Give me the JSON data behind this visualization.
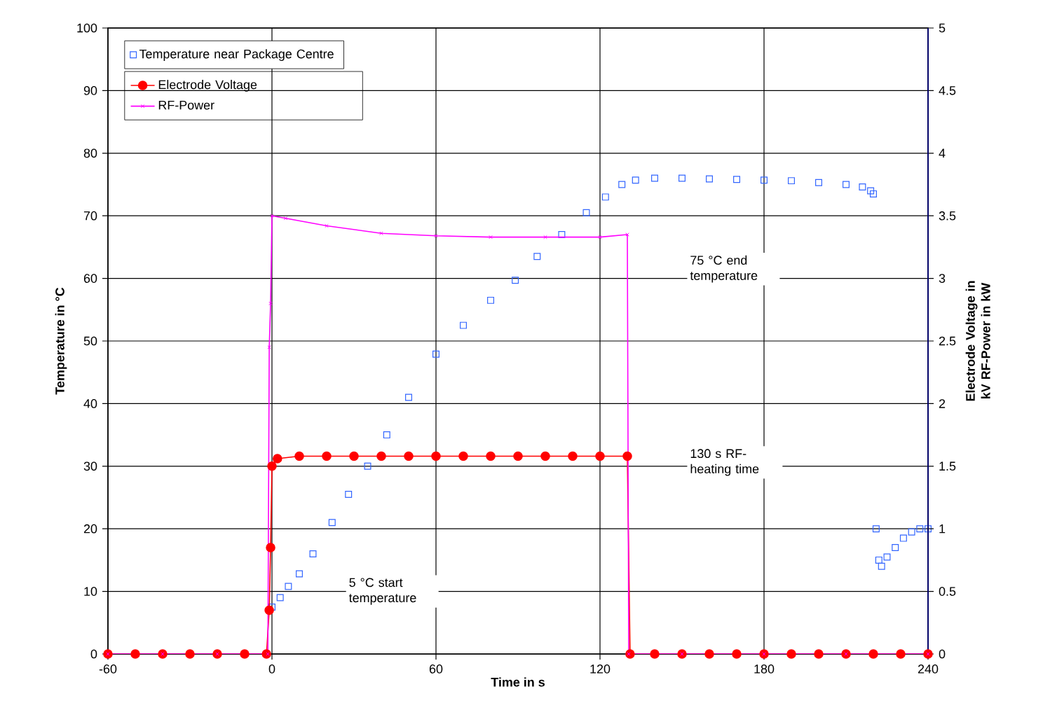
{
  "chart_data": {
    "type": "line",
    "xlabel": "Time in s",
    "ylabel": "Temperature in °C",
    "y2label": "Electrode Voltage in kV RF-Power in kW",
    "xlim": [
      -60,
      240
    ],
    "xticks": [
      -60,
      0,
      60,
      120,
      180,
      240
    ],
    "ylim": [
      0,
      100
    ],
    "yticks": [
      0,
      10,
      20,
      30,
      40,
      50,
      60,
      70,
      80,
      90,
      100
    ],
    "y2lim": [
      0,
      5
    ],
    "y2ticks": [
      0,
      0.5,
      1,
      1.5,
      2,
      2.5,
      3,
      3.5,
      4,
      4.5,
      5
    ],
    "grid": true,
    "legend": "top left",
    "annotations": [
      "75 °C end temperature",
      "130 s RF-heating time",
      "5 °C start temperature"
    ],
    "series": [
      {
        "name": "Temperature near Package Centre",
        "type": "scatter",
        "marker": "square",
        "color": "#3366ff",
        "x": [
          0,
          3,
          6,
          10,
          15,
          22,
          28,
          35,
          42,
          50,
          60,
          70,
          80,
          89,
          97,
          106,
          115,
          122,
          128,
          133,
          140,
          150,
          160,
          170,
          180,
          190,
          200,
          210,
          216,
          219,
          220,
          221,
          222,
          223,
          225,
          228,
          231,
          234,
          237,
          240
        ],
        "values": [
          7.5,
          9,
          10.8,
          12.8,
          16,
          21,
          25.5,
          30,
          35,
          41,
          47.9,
          52.5,
          56.5,
          59.7,
          63.5,
          67,
          70.5,
          73,
          75,
          75.7,
          76,
          76,
          75.9,
          75.8,
          75.7,
          75.6,
          75.3,
          75,
          74.6,
          74,
          73.5,
          20,
          15,
          14,
          15.5,
          17,
          18.5,
          19.5,
          20,
          20
        ]
      },
      {
        "name": "Electrode Voltage",
        "marker": "circle",
        "color": "#ff0000",
        "axis": "y2",
        "x": [
          -60,
          -50,
          -40,
          -30,
          -20,
          -10,
          -2,
          -1,
          -0.5,
          0,
          2,
          10,
          20,
          30,
          40,
          50,
          60,
          70,
          80,
          90,
          100,
          110,
          120,
          130,
          131,
          140,
          150,
          160,
          170,
          180,
          190,
          200,
          210,
          220,
          230,
          240
        ],
        "values": [
          0,
          0,
          0,
          0,
          0,
          0,
          0,
          0.35,
          0.85,
          1.5,
          1.56,
          1.58,
          1.58,
          1.58,
          1.58,
          1.58,
          1.58,
          1.58,
          1.58,
          1.58,
          1.58,
          1.58,
          1.58,
          1.58,
          0,
          0,
          0,
          0,
          0,
          0,
          0,
          0,
          0,
          0,
          0,
          0
        ]
      },
      {
        "name": "RF-Power",
        "marker": "cross",
        "color": "#ff00ff",
        "axis": "y2",
        "x": [
          -60,
          -40,
          -20,
          -1.5,
          -1,
          -0.5,
          0,
          5,
          20,
          40,
          60,
          80,
          100,
          120,
          130,
          130.5,
          150,
          180,
          210,
          240
        ],
        "values": [
          0,
          0,
          0,
          0,
          2.45,
          2.8,
          3.5,
          3.48,
          3.42,
          3.36,
          3.34,
          3.33,
          3.33,
          3.33,
          3.35,
          0,
          0,
          0,
          0,
          0
        ]
      }
    ]
  }
}
